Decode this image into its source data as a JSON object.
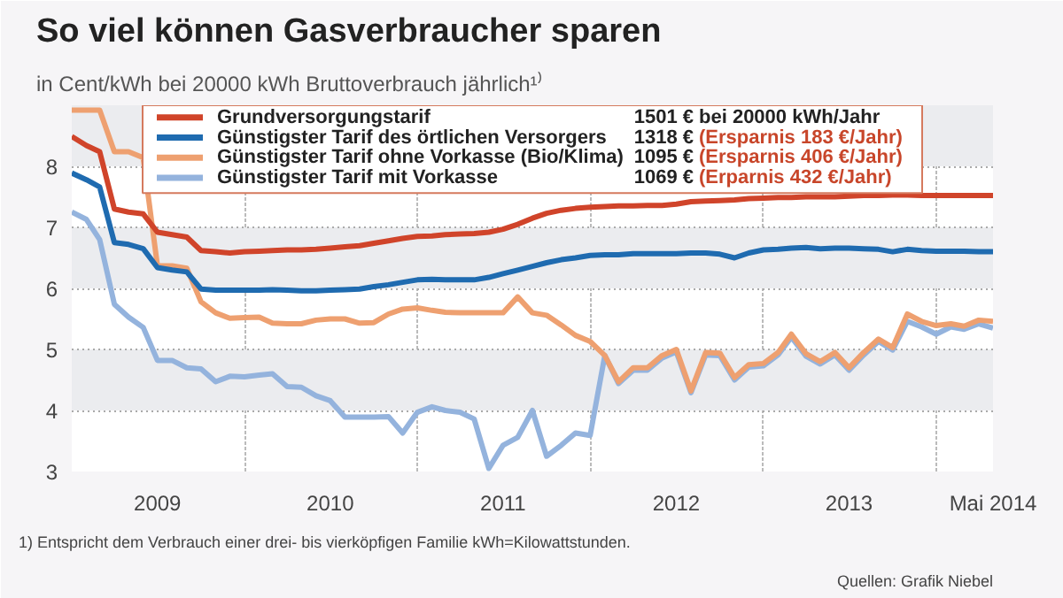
{
  "chart_data": {
    "type": "line",
    "title": "So viel können Gasverbraucher sparen",
    "subtitle": "in Cent/kWh bei 20000 kWh Bruttoverbrauch jährlich¹⁾",
    "x": [
      "2009-01",
      "2009-02",
      "2009-03",
      "2009-04",
      "2009-05",
      "2009-06",
      "2009-07",
      "2009-08",
      "2009-09",
      "2009-10",
      "2009-11",
      "2009-12",
      "2010-01",
      "2010-02",
      "2010-03",
      "2010-04",
      "2010-05",
      "2010-06",
      "2010-07",
      "2010-08",
      "2010-09",
      "2010-10",
      "2010-11",
      "2010-12",
      "2011-01",
      "2011-02",
      "2011-03",
      "2011-04",
      "2011-05",
      "2011-06",
      "2011-07",
      "2011-08",
      "2011-09",
      "2011-10",
      "2011-11",
      "2011-12",
      "2012-01",
      "2012-02",
      "2012-03",
      "2012-04",
      "2012-05",
      "2012-06",
      "2012-07",
      "2012-08",
      "2012-09",
      "2012-10",
      "2012-11",
      "2012-12",
      "2013-01",
      "2013-02",
      "2013-03",
      "2013-04",
      "2013-05",
      "2013-06",
      "2013-07",
      "2013-08",
      "2013-09",
      "2013-10",
      "2013-11",
      "2013-12",
      "2014-01",
      "2014-02",
      "2014-03",
      "2014-04",
      "2014-05"
    ],
    "series": [
      {
        "name": "Grundversorgungstarif",
        "color": "#d0442a",
        "values": [
          8.49,
          8.34,
          8.24,
          7.3,
          7.25,
          7.22,
          6.92,
          6.88,
          6.84,
          6.62,
          6.6,
          6.58,
          6.6,
          6.61,
          6.62,
          6.63,
          6.63,
          6.64,
          6.66,
          6.68,
          6.7,
          6.74,
          6.78,
          6.82,
          6.85,
          6.86,
          6.88,
          6.89,
          6.9,
          6.92,
          6.97,
          7.05,
          7.15,
          7.23,
          7.28,
          7.31,
          7.33,
          7.34,
          7.35,
          7.35,
          7.36,
          7.36,
          7.38,
          7.42,
          7.43,
          7.44,
          7.45,
          7.47,
          7.48,
          7.49,
          7.49,
          7.5,
          7.5,
          7.5,
          7.51,
          7.52,
          7.52,
          7.53,
          7.53,
          7.52,
          7.52,
          7.52,
          7.52,
          7.52,
          7.52
        ]
      },
      {
        "name": "Günstigster Tarif des örtlichen Versorgers",
        "color": "#1f6bb0",
        "values": [
          7.89,
          7.78,
          7.66,
          6.75,
          6.72,
          6.65,
          6.34,
          6.3,
          6.27,
          5.99,
          5.97,
          5.97,
          5.97,
          5.97,
          5.98,
          5.97,
          5.96,
          5.96,
          5.97,
          5.98,
          5.99,
          6.03,
          6.06,
          6.1,
          6.14,
          6.15,
          6.14,
          6.14,
          6.14,
          6.18,
          6.24,
          6.3,
          6.36,
          6.42,
          6.47,
          6.5,
          6.54,
          6.55,
          6.55,
          6.57,
          6.57,
          6.57,
          6.57,
          6.58,
          6.58,
          6.56,
          6.5,
          6.58,
          6.63,
          6.64,
          6.66,
          6.67,
          6.65,
          6.66,
          6.66,
          6.65,
          6.64,
          6.6,
          6.64,
          6.62,
          6.61,
          6.61,
          6.61,
          6.6,
          6.6
        ]
      },
      {
        "name": "Günstigster Tarif ohne Vorkasse (Bio/Klima)",
        "color": "#eea070",
        "values": [
          8.92,
          8.92,
          8.92,
          8.24,
          8.24,
          8.14,
          6.37,
          6.37,
          6.33,
          5.78,
          5.6,
          5.51,
          5.52,
          5.53,
          5.43,
          5.42,
          5.42,
          5.48,
          5.5,
          5.5,
          5.43,
          5.44,
          5.58,
          5.66,
          5.68,
          5.64,
          5.61,
          5.6,
          5.6,
          5.6,
          5.6,
          5.86,
          5.6,
          5.56,
          5.4,
          5.23,
          5.13,
          4.9,
          4.47,
          4.7,
          4.7,
          4.9,
          5.0,
          4.32,
          4.95,
          4.94,
          4.54,
          4.75,
          4.77,
          4.95,
          5.25,
          4.93,
          4.8,
          4.95,
          4.7,
          4.95,
          5.17,
          5.03,
          5.58,
          5.46,
          5.39,
          5.42,
          5.38,
          5.48,
          5.46
        ]
      },
      {
        "name": "Günstigster Tarif mit Vorkasse",
        "color": "#94b3dd",
        "values": [
          7.25,
          7.13,
          6.8,
          5.74,
          5.53,
          5.36,
          4.82,
          4.82,
          4.7,
          4.68,
          4.47,
          4.56,
          4.55,
          4.58,
          4.6,
          4.39,
          4.38,
          4.24,
          4.16,
          3.89,
          3.89,
          3.89,
          3.9,
          3.63,
          3.97,
          4.06,
          4.0,
          3.97,
          3.86,
          3.05,
          3.43,
          3.56,
          4.0,
          3.25,
          3.43,
          3.63,
          3.59,
          4.9,
          4.44,
          4.66,
          4.66,
          4.86,
          4.96,
          4.29,
          4.91,
          4.9,
          4.5,
          4.71,
          4.73,
          4.91,
          5.2,
          4.89,
          4.76,
          4.91,
          4.66,
          4.91,
          5.13,
          4.99,
          5.46,
          5.37,
          5.25,
          5.37,
          5.33,
          5.42,
          5.35
        ]
      }
    ],
    "xlim": [
      "2009-01",
      "2014-05"
    ],
    "xticks": [
      {
        "value": "2009-07",
        "label": "2009"
      },
      {
        "value": "2010-01",
        "label": null
      },
      {
        "value": "2010-07",
        "label": "2010"
      },
      {
        "value": "2011-01",
        "label": null
      },
      {
        "value": "2011-07",
        "label": "2011"
      },
      {
        "value": "2012-01",
        "label": null
      },
      {
        "value": "2012-07",
        "label": "2012"
      },
      {
        "value": "2013-01",
        "label": null
      },
      {
        "value": "2013-07",
        "label": "2013"
      },
      {
        "value": "2014-01",
        "label": null
      },
      {
        "value": "2014-05",
        "label": "Mai 2014"
      }
    ],
    "ylim": [
      3,
      9
    ],
    "yticks": [
      3,
      4,
      5,
      6,
      7,
      8
    ],
    "grid": true,
    "legend": "top",
    "line_style": "solid",
    "marker": "none",
    "annotations": [
      "1501 €",
      "bei 20000 kWh/Jahr",
      "1318 €",
      "(Ersparnis 183 €/Jahr)",
      "1095 €",
      "(Ersparnis 406 €/Jahr)",
      "1069 €",
      "(Erparnis 432 €/Jahr)",
      "1) Entspricht dem Verbrauch einer drei- bis vierköpfigen Familie kWh=Kilowattstunden.",
      "Quellen: Grafik Niebel"
    ]
  }
}
